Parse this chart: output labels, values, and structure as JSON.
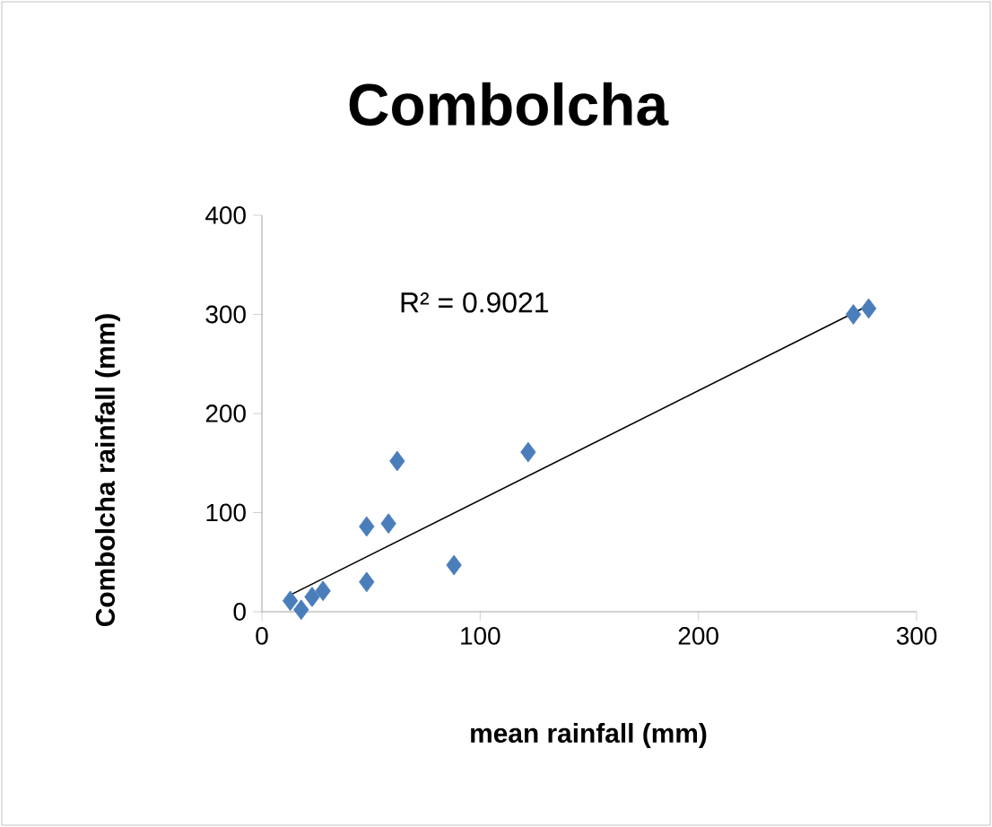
{
  "chart_data": {
    "type": "scatter",
    "title": "Combolcha",
    "xlabel": "mean rainfall (mm)",
    "ylabel": "Combolcha rainfall (mm)",
    "x": [
      13,
      18,
      23,
      28,
      48,
      48,
      58,
      62,
      88,
      122,
      271,
      278
    ],
    "series": [
      {
        "color": "#4a7ebb",
        "values": [
          11,
          2,
          15,
          21,
          30,
          86,
          89,
          152,
          47,
          161,
          300,
          306
        ],
        "marker": "diamond"
      },
      {
        "type": "line",
        "color": "#000000",
        "x": [
          14,
          278
        ],
        "values": [
          18,
          309
        ],
        "marker": "none",
        "line_style": "solid"
      }
    ],
    "annotations": [
      "R² = 0.9021"
    ],
    "xlim": [
      0,
      300
    ],
    "ylim": [
      0,
      400
    ],
    "xticks": [
      0,
      100,
      200,
      300
    ],
    "yticks": [
      0,
      100,
      200,
      300,
      400
    ],
    "grid": false
  }
}
